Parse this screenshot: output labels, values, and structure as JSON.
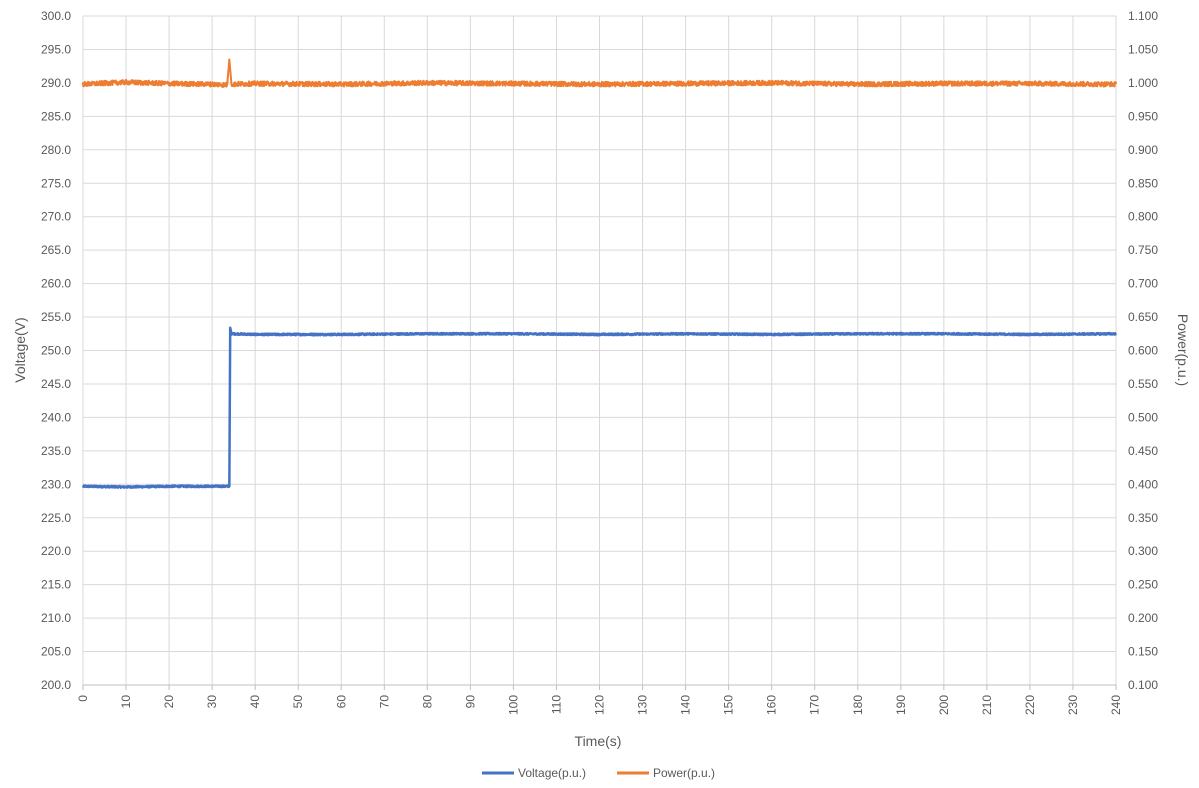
{
  "chart_data": {
    "type": "line",
    "title": "",
    "xlabel": "Time(s)",
    "ylabel_left": "Voltage(V)",
    "ylabel_right": "Power(p.u.)",
    "xlim": [
      0,
      240
    ],
    "x_ticks": [
      "0",
      "10",
      "20",
      "30",
      "40",
      "50",
      "60",
      "70",
      "80",
      "90",
      "100",
      "110",
      "120",
      "130",
      "140",
      "150",
      "160",
      "170",
      "180",
      "190",
      "200",
      "210",
      "220",
      "230",
      "240"
    ],
    "ylim_left": [
      200,
      300
    ],
    "y_ticks_left": [
      "200.0",
      "205.0",
      "210.0",
      "215.0",
      "220.0",
      "225.0",
      "230.0",
      "235.0",
      "240.0",
      "245.0",
      "250.0",
      "255.0",
      "260.0",
      "265.0",
      "270.0",
      "275.0",
      "280.0",
      "285.0",
      "290.0",
      "295.0",
      "300.0"
    ],
    "ylim_right": [
      0.1,
      1.1
    ],
    "y_ticks_right": [
      "0.100",
      "0.150",
      "0.200",
      "0.250",
      "0.300",
      "0.350",
      "0.400",
      "0.450",
      "0.500",
      "0.550",
      "0.600",
      "0.650",
      "0.700",
      "0.750",
      "0.800",
      "0.850",
      "0.900",
      "0.950",
      "1.000",
      "1.050",
      "1.100"
    ],
    "grid": true,
    "legend_position": "bottom",
    "series": [
      {
        "name": "Voltage(p.u.)",
        "axis": "left",
        "color": "#4472C4",
        "x": [
          0,
          10,
          20,
          30,
          34,
          34.2,
          34.5,
          40,
          60,
          80,
          100,
          120,
          140,
          160,
          180,
          200,
          220,
          240
        ],
        "y": [
          229.7,
          229.6,
          229.7,
          229.7,
          229.7,
          253.4,
          252.5,
          252.4,
          252.4,
          252.5,
          252.5,
          252.4,
          252.5,
          252.4,
          252.5,
          252.5,
          252.4,
          252.5
        ]
      },
      {
        "name": "Power(p.u.)",
        "axis": "right",
        "color": "#ED7D31",
        "x": [
          0,
          10,
          20,
          30,
          33.5,
          34,
          34.5,
          40,
          60,
          80,
          100,
          120,
          140,
          160,
          180,
          200,
          220,
          240
        ],
        "y": [
          0.998,
          1.001,
          0.999,
          0.998,
          0.997,
          1.035,
          0.998,
          0.999,
          0.998,
          1.0,
          0.999,
          0.998,
          0.999,
          1.0,
          0.998,
          0.999,
          0.999,
          0.998
        ]
      }
    ]
  }
}
